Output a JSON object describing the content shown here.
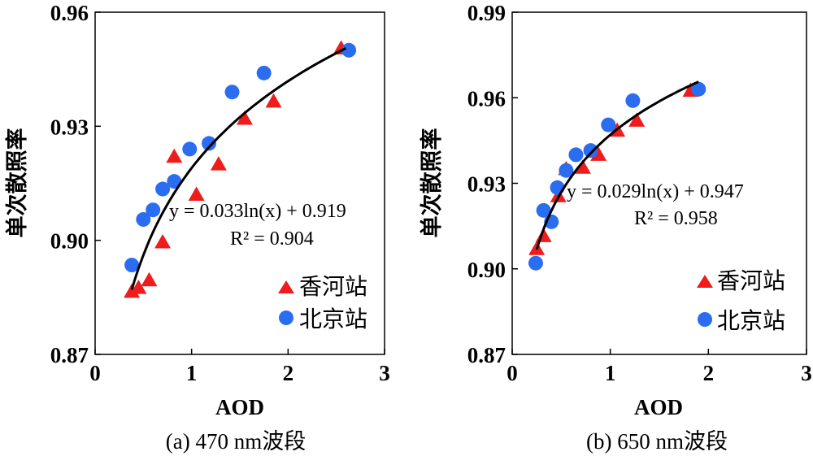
{
  "chart_data": [
    {
      "type": "scatter",
      "caption": "(a) 470 nm波段",
      "xlabel": "AOD",
      "ylabel": "单次散照率",
      "xlim": [
        0,
        3
      ],
      "ylim": [
        0.87,
        0.96
      ],
      "xticks": [
        "0",
        "1",
        "2",
        "3"
      ],
      "yticks": [
        "0.87",
        "0.90",
        "0.93",
        "0.96"
      ],
      "equation": "y = 0.033ln(x) + 0.919",
      "r2": "R² = 0.904",
      "fit": {
        "a": 0.033,
        "b": 0.919,
        "xrange": [
          0.38,
          2.6
        ]
      },
      "legend_position": "bottom-right",
      "series": [
        {
          "name": "香河站",
          "marker": "triangle",
          "color": "#ee1c1c",
          "points": [
            [
              0.38,
              0.8865
            ],
            [
              0.45,
              0.8875
            ],
            [
              0.56,
              0.8895
            ],
            [
              0.7,
              0.8995
            ],
            [
              0.82,
              0.922
            ],
            [
              1.05,
              0.912
            ],
            [
              1.28,
              0.92
            ],
            [
              1.55,
              0.932
            ],
            [
              1.85,
              0.9365
            ],
            [
              2.55,
              0.9505
            ]
          ]
        },
        {
          "name": "北京站",
          "marker": "circle",
          "color": "#2b6df1",
          "points": [
            [
              0.38,
              0.8935
            ],
            [
              0.5,
              0.9055
            ],
            [
              0.6,
              0.908
            ],
            [
              0.7,
              0.9135
            ],
            [
              0.82,
              0.9155
            ],
            [
              0.98,
              0.924
            ],
            [
              1.18,
              0.9255
            ],
            [
              1.42,
              0.939
            ],
            [
              1.75,
              0.944
            ],
            [
              2.63,
              0.95
            ]
          ]
        }
      ]
    },
    {
      "type": "scatter",
      "caption": "(b) 650 nm波段",
      "xlabel": "AOD",
      "ylabel": "单次散照率",
      "xlim": [
        0,
        3
      ],
      "ylim": [
        0.87,
        0.99
      ],
      "xticks": [
        "0",
        "1",
        "2",
        "3"
      ],
      "yticks": [
        "0.87",
        "0.90",
        "0.93",
        "0.96",
        "0.99"
      ],
      "equation": "y = 0.029ln(x) + 0.947",
      "r2": "R² = 0.958",
      "fit": {
        "a": 0.029,
        "b": 0.947,
        "xrange": [
          0.25,
          1.9
        ]
      },
      "legend_position": "bottom-right",
      "series": [
        {
          "name": "香河站",
          "marker": "triangle",
          "color": "#ee1c1c",
          "points": [
            [
              0.25,
              0.907
            ],
            [
              0.32,
              0.9115
            ],
            [
              0.47,
              0.9255
            ],
            [
              0.55,
              0.935
            ],
            [
              0.72,
              0.9355
            ],
            [
              0.88,
              0.94
            ],
            [
              1.07,
              0.9485
            ],
            [
              1.27,
              0.952
            ],
            [
              1.82,
              0.9625
            ]
          ]
        },
        {
          "name": "北京站",
          "marker": "circle",
          "color": "#2b6df1",
          "points": [
            [
              0.24,
              0.902
            ],
            [
              0.32,
              0.9205
            ],
            [
              0.4,
              0.9165
            ],
            [
              0.46,
              0.9285
            ],
            [
              0.55,
              0.9345
            ],
            [
              0.65,
              0.94
            ],
            [
              0.8,
              0.9415
            ],
            [
              0.98,
              0.9505
            ],
            [
              1.23,
              0.959
            ],
            [
              1.9,
              0.963
            ]
          ]
        }
      ]
    }
  ]
}
